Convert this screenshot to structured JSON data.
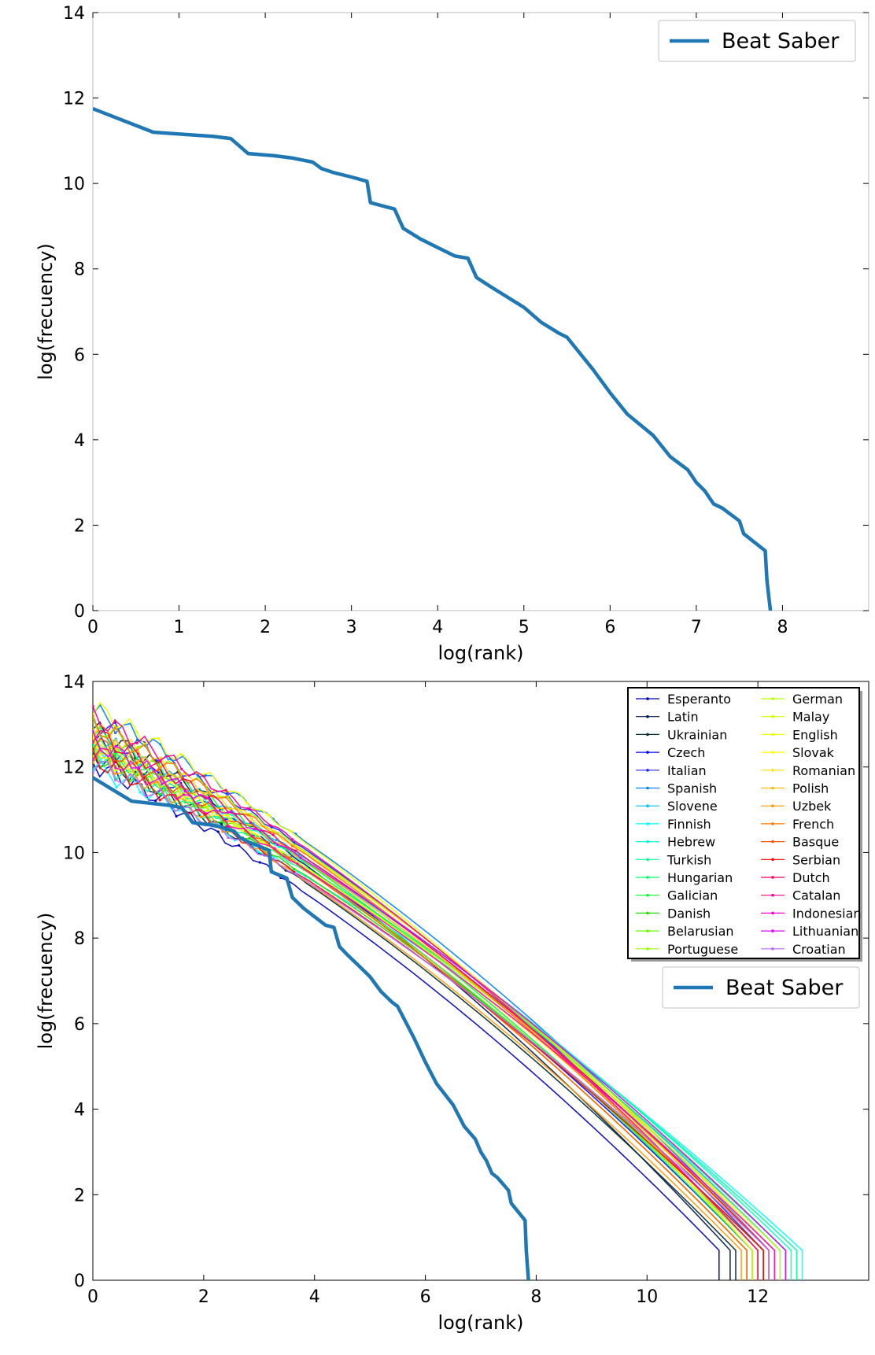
{
  "chart_data": [
    {
      "type": "line",
      "xlabel": "log(rank)",
      "ylabel": "log(frecuency)",
      "xlim": [
        0,
        9
      ],
      "ylim": [
        0,
        14
      ],
      "xticks": [
        "0",
        "1",
        "2",
        "3",
        "4",
        "5",
        "6",
        "7",
        "8"
      ],
      "yticks": [
        "0",
        "2",
        "4",
        "6",
        "8",
        "10",
        "12",
        "14"
      ],
      "grid": false,
      "legend_position": "top-right",
      "series": [
        {
          "name": "Beat Saber",
          "color": "#1f77b4",
          "x": [
            0,
            0.7,
            1.4,
            1.6,
            1.8,
            2.1,
            2.3,
            2.55,
            2.65,
            2.8,
            3.0,
            3.18,
            3.22,
            3.5,
            3.6,
            3.8,
            4.0,
            4.2,
            4.35,
            4.45,
            4.6,
            4.8,
            5.0,
            5.2,
            5.4,
            5.5,
            5.8,
            6.0,
            6.2,
            6.5,
            6.7,
            6.9,
            7.0,
            7.1,
            7.2,
            7.3,
            7.5,
            7.55,
            7.8,
            7.82,
            7.86
          ],
          "y": [
            11.75,
            11.2,
            11.1,
            11.05,
            10.7,
            10.65,
            10.6,
            10.5,
            10.35,
            10.25,
            10.15,
            10.05,
            9.55,
            9.4,
            8.95,
            8.7,
            8.5,
            8.3,
            8.25,
            7.8,
            7.6,
            7.35,
            7.1,
            6.75,
            6.5,
            6.4,
            5.65,
            5.1,
            4.6,
            4.1,
            3.6,
            3.3,
            3.0,
            2.8,
            2.5,
            2.4,
            2.1,
            1.8,
            1.4,
            0.7,
            0
          ]
        }
      ]
    },
    {
      "type": "line",
      "xlabel": "log(rank)",
      "ylabel": "log(frecuency)",
      "xlim": [
        0,
        14
      ],
      "ylim": [
        0,
        14
      ],
      "xticks": [
        "0",
        "2",
        "4",
        "6",
        "8",
        "10",
        "12"
      ],
      "yticks": [
        "0",
        "2",
        "4",
        "6",
        "8",
        "10",
        "12",
        "14"
      ],
      "grid": false,
      "legend_position": "top-right",
      "languages": [
        {
          "name": "Esperanto",
          "color": "#0000b8",
          "a0": 12.1,
          "end": 11.3
        },
        {
          "name": "Latin",
          "color": "#001a4d",
          "a0": 12.9,
          "end": 11.5
        },
        {
          "name": "Ukrainian",
          "color": "#002a2a",
          "a0": 12.3,
          "end": 11.6
        },
        {
          "name": "Czech",
          "color": "#0000ff",
          "a0": 12.6,
          "end": 11.9
        },
        {
          "name": "Italian",
          "color": "#2222ff",
          "a0": 13.1,
          "end": 12.1
        },
        {
          "name": "Spanish",
          "color": "#007fff",
          "a0": 13.3,
          "end": 12.2
        },
        {
          "name": "Slovene",
          "color": "#00bfff",
          "a0": 12.7,
          "end": 12.4
        },
        {
          "name": "Finnish",
          "color": "#00ffff",
          "a0": 12.0,
          "end": 12.8
        },
        {
          "name": "Hebrew",
          "color": "#00ffcc",
          "a0": 12.5,
          "end": 12.6
        },
        {
          "name": "Turkish",
          "color": "#00ff99",
          "a0": 12.2,
          "end": 12.7
        },
        {
          "name": "Hungarian",
          "color": "#00ff66",
          "a0": 12.4,
          "end": 12.5
        },
        {
          "name": "Galician",
          "color": "#00ff33",
          "a0": 12.8,
          "end": 11.9
        },
        {
          "name": "Danish",
          "color": "#22dd00",
          "a0": 12.3,
          "end": 12.1
        },
        {
          "name": "Belarusian",
          "color": "#66ff00",
          "a0": 12.5,
          "end": 12.0
        },
        {
          "name": "Portuguese",
          "color": "#99ff00",
          "a0": 13.0,
          "end": 12.2
        },
        {
          "name": "German",
          "color": "#bbff00",
          "a0": 12.4,
          "end": 12.4
        },
        {
          "name": "Malay",
          "color": "#ccff00",
          "a0": 12.6,
          "end": 11.8
        },
        {
          "name": "English",
          "color": "#eeff00",
          "a0": 13.4,
          "end": 11.9
        },
        {
          "name": "Slovak",
          "color": "#ffff00",
          "a0": 12.5,
          "end": 12.2
        },
        {
          "name": "Romanian",
          "color": "#ffdd00",
          "a0": 12.9,
          "end": 12.3
        },
        {
          "name": "Polish",
          "color": "#ffbb00",
          "a0": 12.7,
          "end": 12.2
        },
        {
          "name": "Uzbek",
          "color": "#ff9900",
          "a0": 12.3,
          "end": 11.7
        },
        {
          "name": "French",
          "color": "#ff7700",
          "a0": 13.0,
          "end": 12.0
        },
        {
          "name": "Basque",
          "color": "#ff5500",
          "a0": 12.6,
          "end": 11.8
        },
        {
          "name": "Serbian",
          "color": "#ff0000",
          "a0": 12.2,
          "end": 12.1
        },
        {
          "name": "Dutch",
          "color": "#ff0055",
          "a0": 12.8,
          "end": 12.2
        },
        {
          "name": "Catalan",
          "color": "#ff0088",
          "a0": 13.2,
          "end": 12.0
        },
        {
          "name": "Indonesian",
          "color": "#ff00cc",
          "a0": 12.4,
          "end": 12.3
        },
        {
          "name": "Lithuanian",
          "color": "#dd00ff",
          "a0": 12.6,
          "end": 12.5
        },
        {
          "name": "Croatian",
          "color": "#bb66ff",
          "a0": 12.1,
          "end": 12.2
        }
      ],
      "series": [
        {
          "name": "Beat Saber",
          "color": "#1f77b4",
          "x": [
            0,
            0.7,
            1.4,
            1.6,
            1.8,
            2.1,
            2.3,
            2.55,
            2.65,
            2.8,
            3.0,
            3.18,
            3.22,
            3.5,
            3.6,
            3.8,
            4.0,
            4.2,
            4.35,
            4.45,
            4.6,
            4.8,
            5.0,
            5.2,
            5.4,
            5.5,
            5.8,
            6.0,
            6.2,
            6.5,
            6.7,
            6.9,
            7.0,
            7.1,
            7.2,
            7.3,
            7.5,
            7.55,
            7.8,
            7.82,
            7.86
          ],
          "y": [
            11.75,
            11.2,
            11.1,
            11.05,
            10.7,
            10.65,
            10.6,
            10.5,
            10.35,
            10.25,
            10.15,
            10.05,
            9.55,
            9.4,
            8.95,
            8.7,
            8.5,
            8.3,
            8.25,
            7.8,
            7.6,
            7.35,
            7.1,
            6.75,
            6.5,
            6.4,
            5.65,
            5.1,
            4.6,
            4.1,
            3.6,
            3.3,
            3.0,
            2.8,
            2.5,
            2.4,
            2.1,
            1.8,
            1.4,
            0.7,
            0
          ]
        }
      ]
    }
  ]
}
